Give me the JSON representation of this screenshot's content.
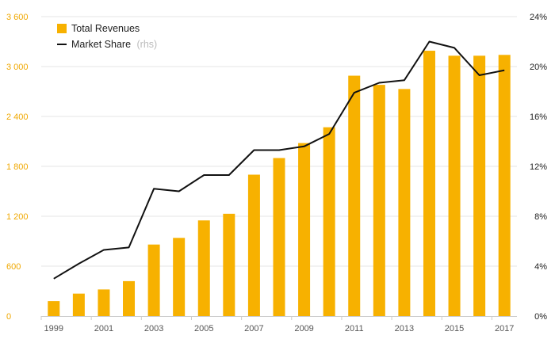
{
  "chart_data": {
    "type": "bar",
    "categories": [
      "1999",
      "2000",
      "2001",
      "2002",
      "2003",
      "2004",
      "2005",
      "2006",
      "2007",
      "2008",
      "2009",
      "2010",
      "2011",
      "2012",
      "2013",
      "2014",
      "2015",
      "2016",
      "2017"
    ],
    "series": [
      {
        "name": "Total Revenues",
        "axis": "left",
        "type": "bar",
        "color": "#f7b100",
        "values": [
          180,
          270,
          320,
          420,
          860,
          940,
          1150,
          1230,
          1700,
          1900,
          2080,
          2270,
          2890,
          2780,
          2730,
          3190,
          3130,
          3130,
          3140
        ]
      },
      {
        "name": "Market Share",
        "name_suffix": "(rhs)",
        "axis": "right",
        "type": "line",
        "color": "#111111",
        "values": [
          3.0,
          4.2,
          5.3,
          5.5,
          10.2,
          10.0,
          11.3,
          11.3,
          13.3,
          13.3,
          13.6,
          14.6,
          17.9,
          18.7,
          18.9,
          22.0,
          21.5,
          19.3,
          19.7
        ]
      }
    ],
    "yaxis_left": {
      "lim": [
        0,
        3600
      ],
      "ticks": [
        0,
        600,
        1200,
        1800,
        2400,
        3000,
        3600
      ],
      "tick_labels": [
        "0",
        "600",
        "1 200",
        "1 800",
        "2 400",
        "3 000",
        "3 600"
      ],
      "color": "#f0a800"
    },
    "yaxis_right": {
      "lim": [
        0,
        24
      ],
      "ticks": [
        0,
        4,
        8,
        12,
        16,
        20,
        24
      ],
      "tick_labels": [
        "0%",
        "4%",
        "8%",
        "12%",
        "16%",
        "20%",
        "24%"
      ],
      "color": "#222222"
    },
    "x_tick_labels": [
      "1999",
      "2001",
      "2003",
      "2005",
      "2007",
      "2009",
      "2011",
      "2013",
      "2015",
      "2017"
    ],
    "title": "",
    "xlabel": "",
    "ylabel": "",
    "grid": true,
    "legend_position": "top-left"
  }
}
